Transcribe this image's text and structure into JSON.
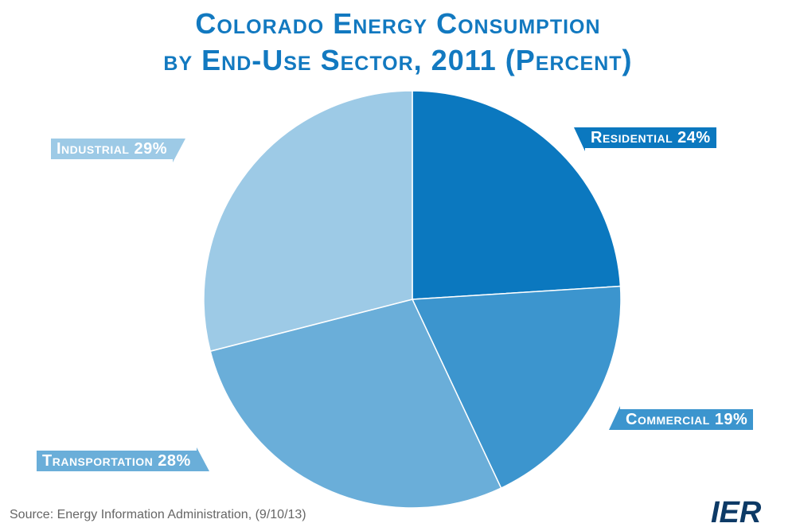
{
  "chart_data": {
    "type": "pie",
    "title_line1": "Colorado Energy Consumption",
    "title_line2": "by End-Use Sector, 2011 (Percent)",
    "slices": [
      {
        "label": "Residential",
        "value": 24,
        "pct_text": "24%",
        "color": "#0b78bf"
      },
      {
        "label": "Commercial",
        "value": 19,
        "pct_text": "19%",
        "color": "#3c95ce"
      },
      {
        "label": "Transportation",
        "value": 28,
        "pct_text": "28%",
        "color": "#6aaed9"
      },
      {
        "label": "Industrial",
        "value": 29,
        "pct_text": "29%",
        "color": "#9dcae6"
      }
    ],
    "start": "12 o'clock, clockwise"
  },
  "source": "Source: Energy Information Administration, (9/10/13)",
  "logo_text": "IER",
  "colors": {
    "title": "#1279c0",
    "logo": "#0d3a66"
  }
}
